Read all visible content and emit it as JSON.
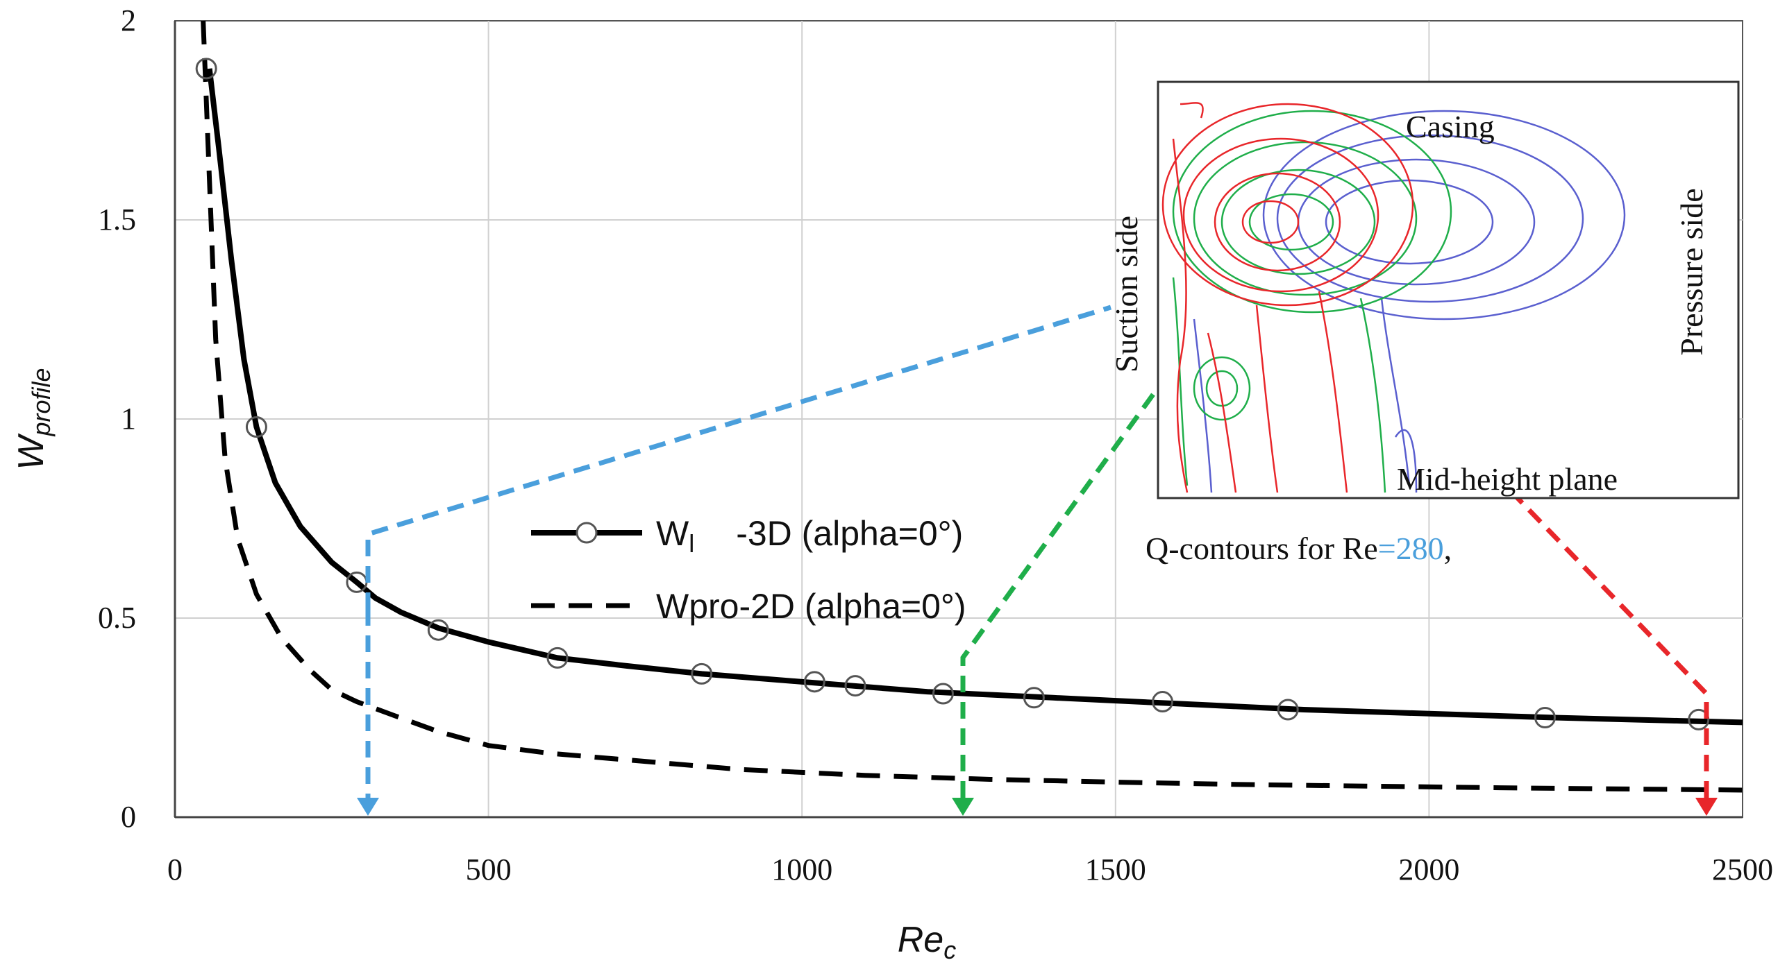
{
  "chart_data": {
    "type": "line",
    "xlabel": "Re",
    "xlabel_sub": "c",
    "ylabel": "W",
    "ylabel_sub": "profile",
    "xlim": [
      0,
      2500
    ],
    "ylim": [
      0,
      2
    ],
    "x_ticks": [
      0,
      500,
      1000,
      1500,
      2000,
      2500
    ],
    "y_ticks": [
      0,
      0.5,
      1,
      1.5,
      2
    ],
    "x_tick_labels": [
      "0",
      "500",
      "1000",
      "1500",
      "2000",
      "2500"
    ],
    "y_tick_labels": [
      "0",
      "0.5",
      "1",
      "1.5",
      "2"
    ],
    "grid": true,
    "series": [
      {
        "name": "Wl-3D (alpha=0°)",
        "legend_main": "W",
        "legend_sub": "l",
        "legend_rest": "-3D (alpha=0°)",
        "style": "solid-markers",
        "color": "#000000",
        "x": [
          50,
          130,
          290,
          420,
          610,
          840,
          1020,
          1085,
          1225,
          1370,
          1575,
          1775,
          2185,
          2430
        ],
        "y": [
          1.88,
          0.98,
          0.59,
          0.47,
          0.4,
          0.36,
          0.34,
          0.33,
          0.31,
          0.3,
          0.29,
          0.27,
          0.25,
          0.245
        ],
        "curve_x": [
          55,
          70,
          90,
          110,
          130,
          160,
          200,
          250,
          290,
          320,
          360,
          420,
          500,
          610,
          720,
          840,
          1000,
          1200,
          1400,
          1600,
          1800,
          2000,
          2200,
          2400,
          2500
        ],
        "curve_y": [
          1.88,
          1.68,
          1.4,
          1.15,
          0.98,
          0.84,
          0.73,
          0.64,
          0.59,
          0.55,
          0.515,
          0.475,
          0.44,
          0.4,
          0.38,
          0.36,
          0.34,
          0.315,
          0.3,
          0.285,
          0.27,
          0.26,
          0.25,
          0.242,
          0.238
        ]
      },
      {
        "name": "Wpro-2D (alpha=0°)",
        "legend_text": "Wpro-2D (alpha=0°)",
        "style": "dashed",
        "color": "#000000",
        "x": [
          45,
          55,
          65,
          80,
          100,
          130,
          170,
          215,
          250,
          290,
          350,
          420,
          500,
          600,
          750,
          900,
          1100,
          1300,
          1500,
          1700,
          1900,
          2100,
          2300,
          2500
        ],
        "y": [
          2.0,
          1.6,
          1.2,
          0.9,
          0.7,
          0.56,
          0.45,
          0.37,
          0.32,
          0.29,
          0.255,
          0.215,
          0.18,
          0.16,
          0.14,
          0.12,
          0.105,
          0.095,
          0.088,
          0.082,
          0.078,
          0.074,
          0.071,
          0.068
        ]
      }
    ],
    "annotations": [
      {
        "name": "blue-arrow",
        "color": "#4a9fdc",
        "target_x": 305,
        "caption_value": "280"
      },
      {
        "name": "green-arrow",
        "color": "#1fae4a",
        "target_x": 1260
      },
      {
        "name": "red-arrow",
        "color": "#e8262a",
        "target_x": 2445
      }
    ]
  },
  "inset": {
    "casing_label": "Casing",
    "suction_label": "Suction side",
    "pressure_label": "Pressure side",
    "midheight_label": "Mid-height plane",
    "caption_prefix": "Q-contours for Re",
    "caption_value": "=280",
    "caption_suffix": ",",
    "contour_colors": {
      "red": "#e8262a",
      "green": "#1fae4a",
      "blue": "#5a5fcf"
    }
  }
}
